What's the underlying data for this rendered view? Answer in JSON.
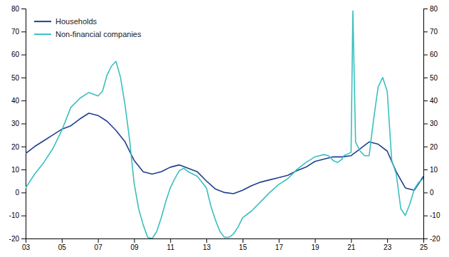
{
  "chart_data": {
    "type": "line",
    "xlim": [
      2003,
      2025
    ],
    "xticks": [
      {
        "value": 2003,
        "label": "03"
      },
      {
        "value": 2005,
        "label": "05"
      },
      {
        "value": 2007,
        "label": "07"
      },
      {
        "value": 2009,
        "label": "09"
      },
      {
        "value": 2011,
        "label": "11"
      },
      {
        "value": 2013,
        "label": "13"
      },
      {
        "value": 2015,
        "label": "15"
      },
      {
        "value": 2017,
        "label": "17"
      },
      {
        "value": 2019,
        "label": "19"
      },
      {
        "value": 2021,
        "label": "21"
      },
      {
        "value": 2023,
        "label": "23"
      },
      {
        "value": 2025,
        "label": "25"
      }
    ],
    "ylim": [
      -20,
      80
    ],
    "yticks": [
      -20,
      -10,
      0,
      10,
      20,
      30,
      40,
      50,
      60,
      70,
      80
    ],
    "y2lim": [
      -20,
      80
    ],
    "y2ticks": [
      -20,
      -10,
      0,
      10,
      20,
      30,
      40,
      50,
      60,
      70,
      80
    ],
    "legend": "upper left",
    "series": [
      {
        "name": "Households",
        "color": "#1f3f8f",
        "x": [
          2003.0,
          2003.5,
          2004.0,
          2004.5,
          2005.0,
          2005.5,
          2006.0,
          2006.5,
          2007.0,
          2007.5,
          2008.0,
          2008.5,
          2009.0,
          2009.5,
          2010.0,
          2010.5,
          2011.0,
          2011.5,
          2012.0,
          2012.5,
          2013.0,
          2013.5,
          2014.0,
          2014.5,
          2015.0,
          2015.5,
          2016.0,
          2016.5,
          2017.0,
          2017.5,
          2018.0,
          2018.5,
          2019.0,
          2019.5,
          2020.0,
          2020.5,
          2021.0,
          2021.5,
          2022.0,
          2022.5,
          2023.0,
          2023.5,
          2024.0,
          2024.5,
          2025.0
        ],
        "values": [
          17.0,
          20.0,
          22.5,
          25.0,
          27.5,
          29.0,
          32.0,
          34.5,
          33.5,
          31.0,
          27.0,
          22.0,
          14.0,
          9.0,
          8.0,
          9.0,
          11.0,
          12.0,
          10.5,
          9.0,
          5.0,
          1.5,
          0.0,
          -0.5,
          1.0,
          3.0,
          4.5,
          5.5,
          6.5,
          7.5,
          9.5,
          11.0,
          13.5,
          14.5,
          15.5,
          15.5,
          16.0,
          19.0,
          22.0,
          21.0,
          18.0,
          9.0,
          2.0,
          1.0,
          7.0
        ]
      },
      {
        "name": "Non-financial companies",
        "color": "#3abfbf",
        "x": [
          2003.0,
          2003.5,
          2004.0,
          2004.5,
          2005.0,
          2005.5,
          2006.0,
          2006.5,
          2007.0,
          2007.25,
          2007.5,
          2007.75,
          2008.0,
          2008.25,
          2008.5,
          2008.75,
          2009.0,
          2009.25,
          2009.5,
          2009.75,
          2010.0,
          2010.25,
          2010.5,
          2010.75,
          2011.0,
          2011.25,
          2011.5,
          2011.75,
          2012.0,
          2012.5,
          2013.0,
          2013.25,
          2013.5,
          2013.75,
          2014.0,
          2014.25,
          2014.5,
          2014.75,
          2015.0,
          2015.5,
          2016.0,
          2016.5,
          2017.0,
          2017.5,
          2018.0,
          2018.5,
          2019.0,
          2019.25,
          2019.5,
          2019.75,
          2020.0,
          2020.25,
          2020.5,
          2020.6,
          2020.75,
          2021.0,
          2021.1,
          2021.25,
          2021.5,
          2021.75,
          2022.0,
          2022.25,
          2022.5,
          2022.75,
          2023.0,
          2023.25,
          2023.5,
          2023.75,
          2024.0,
          2024.25,
          2024.5,
          2024.75,
          2025.0
        ],
        "values": [
          2.0,
          8.0,
          13.0,
          19.0,
          27.0,
          37.0,
          41.0,
          43.5,
          42.0,
          44.0,
          51.0,
          55.0,
          57.0,
          50.0,
          38.0,
          23.0,
          4.0,
          -7.0,
          -14.0,
          -19.5,
          -20.0,
          -17.0,
          -11.0,
          -4.0,
          2.0,
          6.0,
          9.5,
          10.5,
          9.0,
          7.0,
          2.0,
          -6.0,
          -12.0,
          -17.0,
          -19.5,
          -19.5,
          -18.0,
          -15.0,
          -11.0,
          -8.0,
          -4.0,
          0.0,
          3.5,
          6.0,
          10.0,
          13.0,
          15.5,
          16.0,
          16.5,
          16.0,
          14.0,
          13.0,
          14.5,
          16.0,
          16.5,
          17.5,
          79.0,
          22.0,
          18.0,
          16.0,
          16.0,
          32.0,
          46.0,
          50.0,
          44.0,
          14.0,
          8.0,
          -7.0,
          -10.0,
          -5.0,
          1.5,
          4.5,
          6.0
        ]
      }
    ]
  }
}
